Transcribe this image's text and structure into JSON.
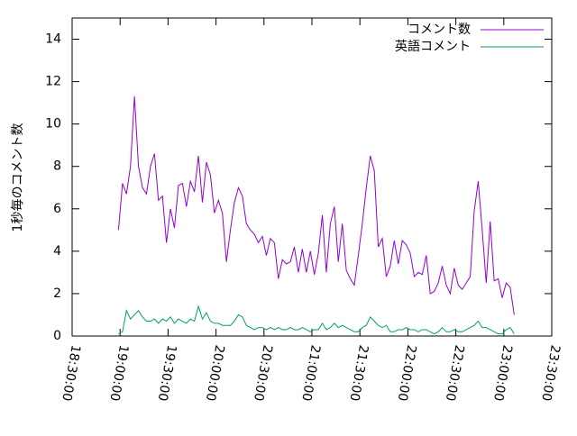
{
  "chart_data": {
    "type": "line",
    "y_label": "1秒毎のコメント数",
    "x": [
      1139,
      1141.5,
      1144,
      1146.5,
      1149,
      1151.5,
      1154,
      1156.5,
      1159,
      1161.5,
      1164,
      1166.5,
      1169,
      1171.5,
      1174,
      1176.5,
      1179,
      1181.5,
      1184,
      1186.5,
      1189,
      1191.5,
      1194,
      1196.5,
      1199,
      1201.5,
      1204,
      1206.5,
      1209,
      1211.5,
      1214,
      1216.5,
      1219,
      1221.5,
      1224,
      1226.5,
      1229,
      1231.5,
      1234,
      1236.5,
      1239,
      1241.5,
      1244,
      1246.5,
      1249,
      1251.5,
      1254,
      1256.5,
      1259,
      1261.5,
      1264,
      1266.5,
      1269,
      1271.5,
      1274,
      1276.5,
      1279,
      1281.5,
      1284,
      1286.5,
      1289,
      1291.5,
      1294,
      1296.5,
      1299,
      1301.5,
      1304,
      1306.5,
      1309,
      1311.5,
      1314,
      1316.5,
      1319,
      1321.5,
      1324,
      1326.5,
      1329,
      1331.5,
      1334,
      1336.5,
      1339,
      1341.5,
      1344,
      1346.5,
      1349,
      1351.5,
      1354,
      1356.5,
      1359,
      1361.5,
      1364,
      1366.5,
      1369,
      1371.5,
      1374,
      1376.5,
      1379,
      1381.5,
      1384,
      1386.5
    ],
    "series": [
      {
        "name": "コメント数",
        "color": "#9400d3",
        "values": [
          5.0,
          7.2,
          6.7,
          8,
          11.3,
          8,
          7,
          6.7,
          8,
          8.6,
          6.4,
          6.6,
          4.4,
          6,
          5.1,
          7.1,
          7.2,
          6.1,
          7.3,
          6.8,
          8.5,
          6.3,
          8.2,
          7.6,
          5.8,
          6.4,
          5.8,
          3.5,
          5,
          6.3,
          7,
          6.6,
          5.3,
          5,
          4.8,
          4.4,
          4.7,
          3.8,
          4.6,
          4.4,
          2.7,
          3.6,
          3.4,
          3.5,
          4.2,
          3,
          4.1,
          3,
          4,
          2.9,
          3.9,
          5.7,
          3,
          5.3,
          6.1,
          3.5,
          5.3,
          3.1,
          2.7,
          2.4,
          3.8,
          5.3,
          7,
          8.5,
          7.8,
          4.2,
          4.6,
          2.8,
          3.3,
          4.5,
          3.4,
          4.5,
          4.3,
          3.9,
          2.8,
          3,
          2.9,
          3.8,
          2,
          2.1,
          2.5,
          3.3,
          2.4,
          2,
          3.2,
          2.4,
          2.2,
          2.5,
          2.8,
          5.9,
          7.3,
          5,
          2.5,
          5.4,
          2.6,
          2.7,
          1.8,
          2.5,
          2.3,
          1.0
        ]
      },
      {
        "name": "英語コメント",
        "color": "#009e73",
        "values": [
          0.1,
          0.2,
          1.2,
          0.8,
          1.0,
          1.2,
          0.9,
          0.7,
          0.7,
          0.8,
          0.6,
          0.8,
          0.7,
          0.9,
          0.6,
          0.8,
          0.7,
          0.6,
          0.8,
          0.7,
          1.4,
          0.8,
          1.1,
          0.7,
          0.6,
          0.6,
          0.5,
          0.5,
          0.5,
          0.7,
          1.0,
          0.9,
          0.5,
          0.4,
          0.3,
          0.4,
          0.4,
          0.3,
          0.4,
          0.3,
          0.4,
          0.3,
          0.3,
          0.4,
          0.3,
          0.3,
          0.4,
          0.3,
          0.2,
          0.3,
          0.3,
          0.6,
          0.3,
          0.4,
          0.6,
          0.4,
          0.5,
          0.4,
          0.3,
          0.2,
          0.2,
          0.4,
          0.5,
          0.9,
          0.7,
          0.5,
          0.4,
          0.5,
          0.2,
          0.2,
          0.3,
          0.3,
          0.4,
          0.3,
          0.3,
          0.2,
          0.3,
          0.3,
          0.2,
          0.1,
          0.2,
          0.4,
          0.2,
          0.2,
          0.3,
          0.2,
          0.2,
          0.3,
          0.4,
          0.5,
          0.7,
          0.4,
          0.4,
          0.3,
          0.2,
          0.1,
          0.1,
          0.3,
          0.4,
          0.1
        ]
      }
    ],
    "xlim": [
      1110,
      1410
    ],
    "xticks": [
      {
        "value": 1110,
        "label": "18:30:00"
      },
      {
        "value": 1140,
        "label": "19:00:00"
      },
      {
        "value": 1170,
        "label": "19:30:00"
      },
      {
        "value": 1200,
        "label": "20:00:00"
      },
      {
        "value": 1230,
        "label": "20:30:00"
      },
      {
        "value": 1260,
        "label": "21:00:00"
      },
      {
        "value": 1290,
        "label": "21:30:00"
      },
      {
        "value": 1320,
        "label": "22:00:00"
      },
      {
        "value": 1350,
        "label": "22:30:00"
      },
      {
        "value": 1380,
        "label": "23:00:00"
      },
      {
        "value": 1410,
        "label": "23:30:00"
      }
    ],
    "ylim": [
      0,
      15
    ],
    "yticks": [
      0,
      2,
      4,
      6,
      8,
      10,
      12,
      14
    ],
    "grid": false,
    "legend": "top-right"
  }
}
